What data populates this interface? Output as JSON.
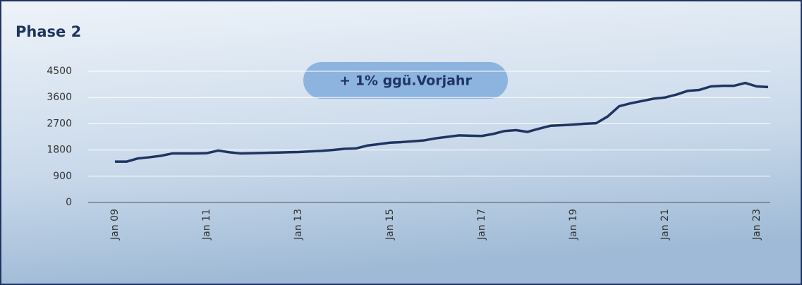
{
  "chart_data": {
    "type": "line",
    "title": "Phase 2",
    "annotation": "+ 1% ggü.Vorjahr",
    "categories": [
      "Jan 09",
      null,
      null,
      null,
      null,
      null,
      null,
      null,
      "Jan 11",
      null,
      null,
      null,
      null,
      null,
      null,
      null,
      "Jan 13",
      null,
      null,
      null,
      null,
      null,
      null,
      null,
      "Jan 15",
      null,
      null,
      null,
      null,
      null,
      null,
      null,
      "Jan 17",
      null,
      null,
      null,
      null,
      null,
      null,
      null,
      "Jan 19",
      null,
      null,
      null,
      null,
      null,
      null,
      null,
      "Jan 21",
      null,
      null,
      null,
      null,
      null,
      null,
      null,
      "Jan 23",
      null
    ],
    "series": [
      {
        "color": "#1f3461",
        "values": [
          1400,
          1400,
          1510,
          1550,
          1600,
          1680,
          1680,
          1680,
          1690,
          1780,
          1720,
          1680,
          1690,
          1700,
          1710,
          1720,
          1730,
          1750,
          1770,
          1800,
          1840,
          1850,
          1950,
          2000,
          2050,
          2070,
          2100,
          2130,
          2200,
          2250,
          2300,
          2290,
          2280,
          2350,
          2450,
          2480,
          2420,
          2530,
          2630,
          2650,
          2670,
          2700,
          2720,
          2950,
          3300,
          3400,
          3480,
          3560,
          3600,
          3700,
          3830,
          3860,
          3980,
          4000,
          4000,
          4100,
          3980,
          3960
        ]
      }
    ],
    "ylim": [
      0,
      4500
    ],
    "yticks": [
      0,
      900,
      1800,
      2700,
      3600,
      4500
    ],
    "grid": true
  }
}
